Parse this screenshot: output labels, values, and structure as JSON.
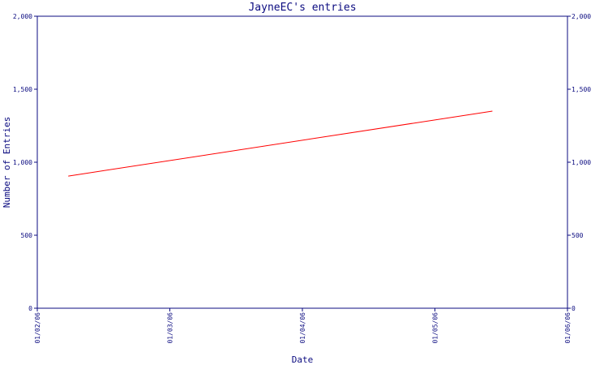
{
  "chart_data": {
    "type": "line",
    "title": "JayneEC's entries",
    "xlabel": "Date",
    "ylabel": "Number of Entries",
    "x_ticks": [
      "01/02/06",
      "01/03/06",
      "01/04/06",
      "01/05/06",
      "01/06/06"
    ],
    "y_ticks": [
      "0",
      "500",
      "1,000",
      "1,500",
      "2,000"
    ],
    "ylim": [
      0,
      2000
    ],
    "xlim": [
      "2006-02-01",
      "2006-06-01"
    ],
    "series": [
      {
        "color": "#ff0000",
        "points": [
          {
            "x": "2006-02-08",
            "y": 905
          },
          {
            "x": "2006-05-15",
            "y": 1350
          }
        ]
      }
    ],
    "grid": false,
    "right_axis": true
  },
  "colors": {
    "axis": "#0b0b80",
    "line": "#ff0000",
    "background": "#ffffff"
  }
}
